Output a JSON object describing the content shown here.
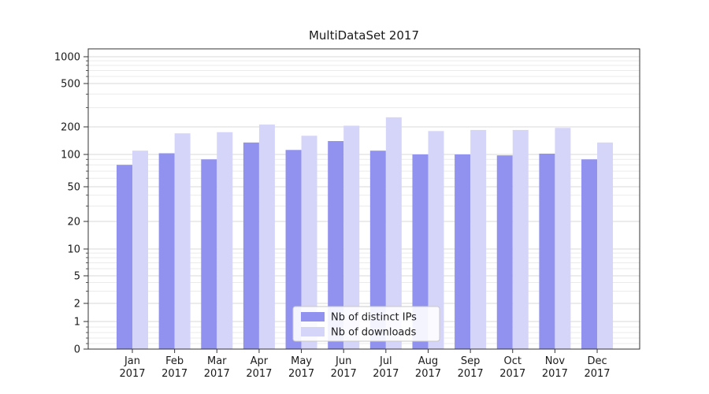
{
  "chart_data": {
    "type": "bar",
    "title": "MultiDataSet 2017",
    "xlabel": "",
    "ylabel": "",
    "yscale": "symlog",
    "ylim": [
      0,
      1000
    ],
    "grid": true,
    "legend_position": "lower center",
    "year_label": "2017",
    "categories": [
      "Jan",
      "Feb",
      "Mar",
      "Apr",
      "May",
      "Jun",
      "Jul",
      "Aug",
      "Sep",
      "Oct",
      "Nov",
      "Dec"
    ],
    "yticks": [
      0,
      1,
      2,
      5,
      10,
      20,
      50,
      100,
      200,
      500,
      1000
    ],
    "series": [
      {
        "name": "Nb of distinct IPs",
        "color": "#9191ef",
        "values": [
          80,
          103,
          90,
          135,
          112,
          140,
          110,
          100,
          100,
          98,
          102,
          90
        ]
      },
      {
        "name": "Nb of downloads",
        "color": "#d5d5f9",
        "values": [
          110,
          170,
          175,
          210,
          160,
          205,
          245,
          180,
          185,
          185,
          195,
          135
        ]
      }
    ],
    "colors": {
      "major_grid": "#d8d8d8",
      "minor_grid": "#ebebeb",
      "axis": "#333333",
      "tick_text": "#1a1a1a",
      "legend_border": "#c9c9c9"
    }
  }
}
